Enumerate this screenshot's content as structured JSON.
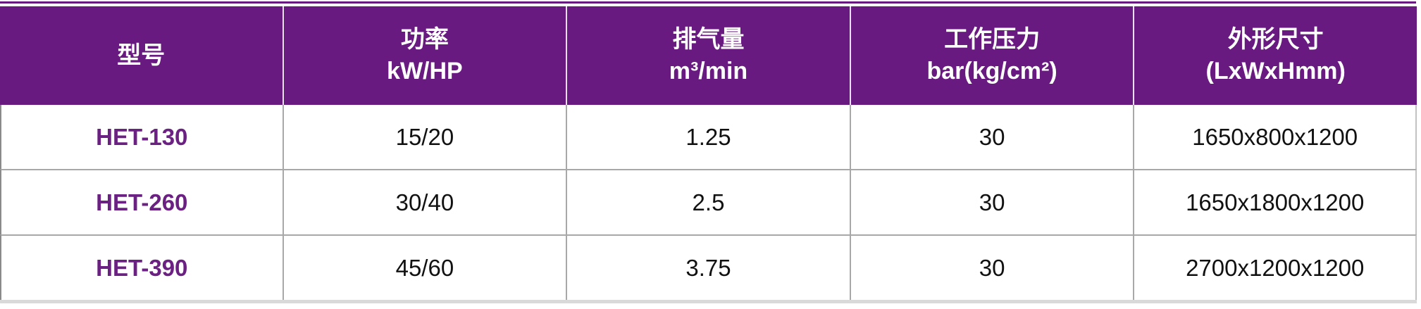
{
  "page": {
    "type": "product-specification-table"
  },
  "colors": {
    "header_background": "#691A80",
    "header_text": "#FFFFFF",
    "top_rule": "#691A80",
    "model_text": "#6B2182",
    "body_text": "#111111",
    "grid_line": "#A8A8A8",
    "bottom_border": "#D9D9D9"
  },
  "table": {
    "header": {
      "model": {
        "line1": "型号"
      },
      "power": {
        "line1": "功率",
        "line2": "kW/HP"
      },
      "displacement": {
        "line1": "排气量",
        "line2": "m³/min"
      },
      "pressure": {
        "line1": "工作压力",
        "line2": "bar(kg/cm²)"
      },
      "dimensions": {
        "line1": "外形尺寸",
        "line2": "(LxWxHmm)"
      }
    },
    "rows": [
      {
        "model": "HET-130",
        "power": "15/20",
        "displacement": "1.25",
        "pressure": "30",
        "dimensions": "1650x800x1200"
      },
      {
        "model": "HET-260",
        "power": "30/40",
        "displacement": "2.5",
        "pressure": "30",
        "dimensions": "1650x1800x1200"
      },
      {
        "model": "HET-390",
        "power": "45/60",
        "displacement": "3.75",
        "pressure": "30",
        "dimensions": "2700x1200x1200"
      }
    ]
  }
}
